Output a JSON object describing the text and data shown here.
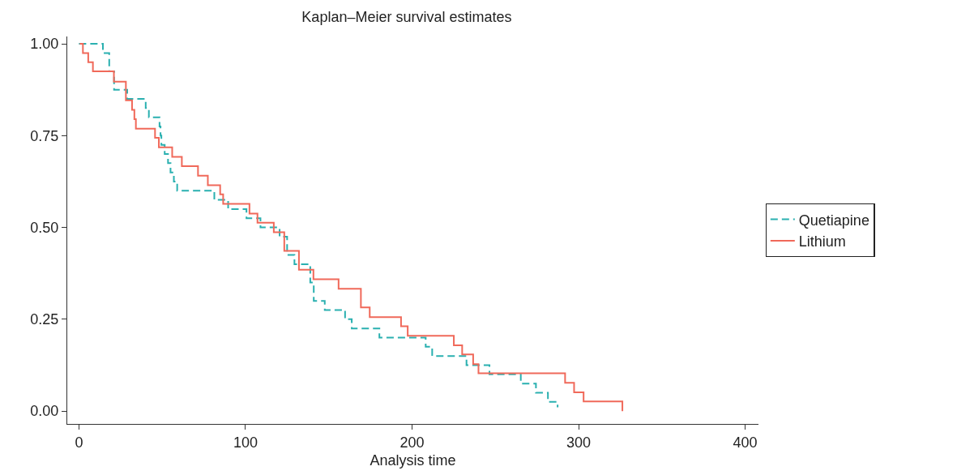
{
  "chart_data": {
    "type": "step",
    "title": "Kaplan–Meier survival estimates",
    "xlabel": "Analysis time",
    "xlim": [
      -7,
      408
    ],
    "ylim": [
      -0.035,
      1.02
    ],
    "xticks": [
      0,
      100,
      200,
      300,
      400
    ],
    "yticks": [
      {
        "value": 0,
        "label": "0.00"
      },
      {
        "value": 0.25,
        "label": "0.25"
      },
      {
        "value": 0.5,
        "label": "0.50"
      },
      {
        "value": 0.75,
        "label": "0.75"
      },
      {
        "value": 1,
        "label": "1.00"
      }
    ],
    "legend": "right",
    "marker": "none",
    "series": [
      {
        "name": "Quetiapine",
        "color": "#2ab0b0",
        "line_style": "dashed",
        "x": [
          0,
          14.4,
          18.2,
          21.1,
          29,
          40.1,
          42,
          48.4,
          49,
          49.5,
          51.5,
          53.5,
          55,
          57,
          59,
          81.3,
          89.6,
          100.6,
          109,
          120.5,
          125,
          129.4,
          138.9,
          141,
          147.6,
          159.8,
          163.8,
          180.4,
          208.2,
          212.1,
          232.7,
          246.5,
          265.3,
          274.4,
          281.6,
          287.4
        ],
        "values": [
          1,
          0.975,
          0.925,
          0.875,
          0.85,
          0.825,
          0.8,
          0.775,
          0.75,
          0.725,
          0.7,
          0.675,
          0.65,
          0.625,
          0.6,
          0.575,
          0.55,
          0.525,
          0.5,
          0.475,
          0.425,
          0.4,
          0.35,
          0.3,
          0.275,
          0.25,
          0.225,
          0.2,
          0.175,
          0.15,
          0.125,
          0.1,
          0.075,
          0.05,
          0.025,
          0.01
        ]
      },
      {
        "name": "Lithium",
        "color": "#f0695a",
        "line_style": "solid",
        "x": [
          0.5,
          2.4,
          5.6,
          8.4,
          21,
          28.2,
          31.9,
          33.3,
          34.2,
          45.7,
          48,
          56,
          61.8,
          71.5,
          77.4,
          84.8,
          86.6,
          102.4,
          107.2,
          117,
          123.3,
          132.1,
          140.8,
          155.9,
          169.3,
          174.6,
          193.4,
          197.4,
          225.1,
          230.1,
          236.7,
          239.9,
          291.9,
          297.3,
          303,
          326.3
        ],
        "values": [
          1,
          0.975,
          0.95,
          0.925,
          0.897,
          0.846,
          0.82,
          0.795,
          0.769,
          0.744,
          0.718,
          0.692,
          0.667,
          0.641,
          0.615,
          0.59,
          0.564,
          0.538,
          0.513,
          0.487,
          0.436,
          0.385,
          0.359,
          0.333,
          0.282,
          0.256,
          0.231,
          0.205,
          0.179,
          0.154,
          0.128,
          0.103,
          0.077,
          0.051,
          0.026,
          0
        ]
      }
    ]
  }
}
